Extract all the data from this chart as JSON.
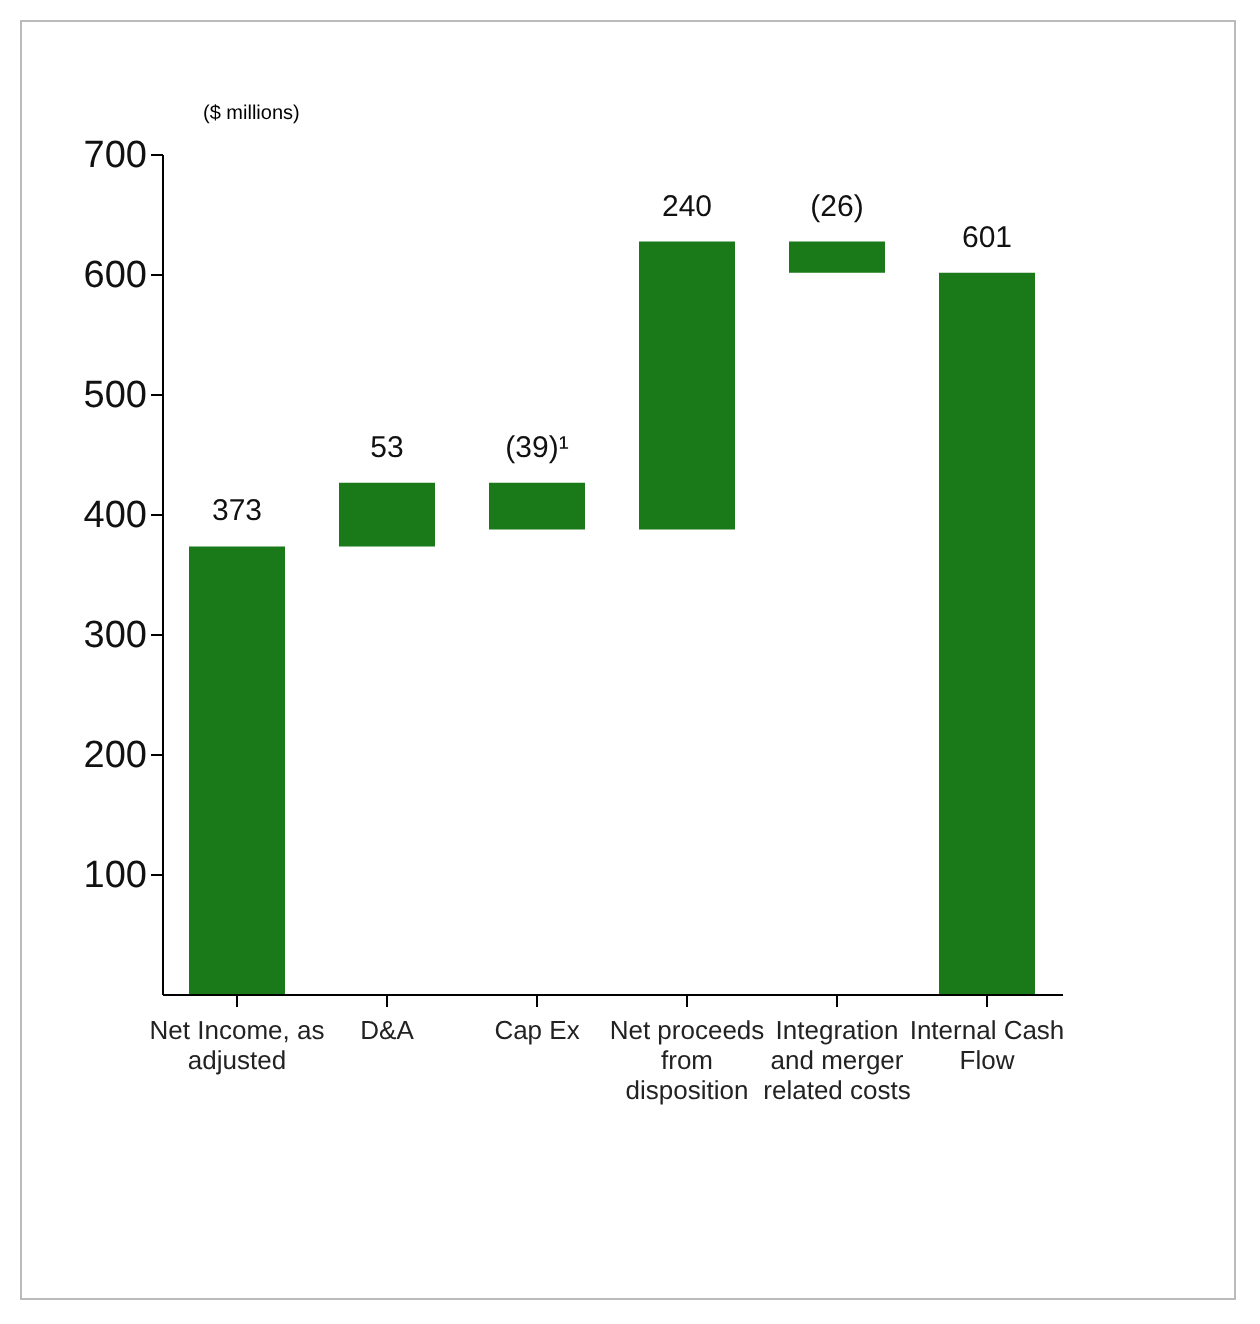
{
  "chart_data": {
    "type": "bar",
    "ylabel": "($ millions)",
    "categories": [
      "Net Income, as adjusted",
      "D&A",
      "Cap Ex",
      "Net proceeds from disposition",
      "Integration and merger related costs",
      "Internal Cash Flow"
    ],
    "base": [
      0,
      373,
      426,
      387,
      627,
      0
    ],
    "values": [
      373,
      53,
      -39,
      240,
      -26,
      601
    ],
    "value_labels": [
      "373",
      "53",
      "(39)¹",
      "240",
      "(26)",
      "601"
    ],
    "color": "#1a7a1a",
    "ylim": [
      0,
      700
    ],
    "yticks": [
      100,
      200,
      300,
      400,
      500,
      600,
      700
    ],
    "grid": false
  }
}
